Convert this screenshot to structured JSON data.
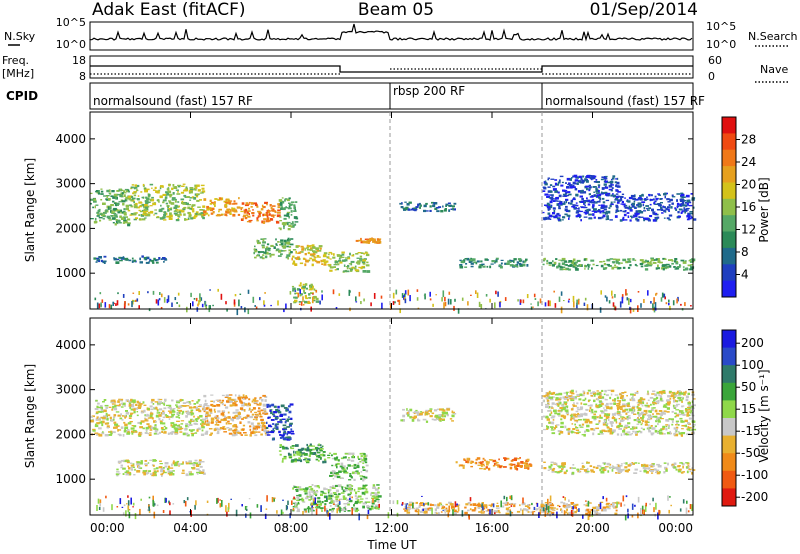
{
  "title": {
    "left": "Adak East (fitACF)",
    "center": "Beam 05",
    "right": "01/Sep/2014"
  },
  "noise_panel": {
    "left_label": "N.Sky",
    "right_label": "N.Search",
    "left_ticks": [
      "10^5",
      "10^0"
    ],
    "right_ticks": [
      "10^5",
      "10^0"
    ]
  },
  "freq_panel": {
    "left_label_1": "Freq.",
    "left_label_2": "[MHz]",
    "left_ticks": [
      "18",
      "8"
    ],
    "right_label": "Nave",
    "right_ticks": [
      "60",
      "0"
    ]
  },
  "cpid": {
    "label": "CPID",
    "segments": [
      {
        "text": "normalsound (fast) 157 RF",
        "start_hour": 0
      },
      {
        "text": "rbsp 200 RF",
        "start_hour": 12
      },
      {
        "text": "normalsound (fast) 157 RF",
        "start_hour": 18
      }
    ]
  },
  "chart_data": [
    {
      "type": "heatmap",
      "name": "power",
      "ylabel": "Slant Range [km]",
      "xlim_hours": [
        0,
        24
      ],
      "ylim": [
        200,
        4600
      ],
      "yticks": [
        "1000",
        "2000",
        "3000",
        "4000"
      ],
      "colorbar": {
        "label": "Power [dB]",
        "ticks": [
          "4",
          "8",
          "12",
          "16",
          "20",
          "24",
          "28"
        ],
        "colors": [
          "#1f1ff0",
          "#1f3fbf",
          "#1f6a8a",
          "#2b8a58",
          "#55a866",
          "#8fbf4a",
          "#d4c21a",
          "#e6a01e",
          "#f07818",
          "#f04a12",
          "#e01010"
        ]
      },
      "regions": [
        {
          "t0": 0.0,
          "t1": 1.5,
          "r0": 2100,
          "r1": 2900,
          "level": 4
        },
        {
          "t0": 1.5,
          "t1": 4.5,
          "r0": 2200,
          "r1": 3000,
          "level": 5
        },
        {
          "t0": 4.5,
          "t1": 6.0,
          "r0": 2300,
          "r1": 2700,
          "level": 7
        },
        {
          "t0": 6.0,
          "t1": 7.5,
          "r0": 2150,
          "r1": 2600,
          "level": 8
        },
        {
          "t0": 7.5,
          "t1": 8.2,
          "r0": 2000,
          "r1": 2700,
          "level": 4
        },
        {
          "t0": 0.0,
          "t1": 3.0,
          "r0": 1250,
          "r1": 1400,
          "level": 2
        },
        {
          "t0": 6.5,
          "t1": 8.0,
          "r0": 1350,
          "r1": 1800,
          "level": 4
        },
        {
          "t0": 8.0,
          "t1": 9.5,
          "r0": 1200,
          "r1": 1650,
          "level": 6
        },
        {
          "t0": 9.5,
          "t1": 11.0,
          "r0": 1050,
          "r1": 1500,
          "level": 5
        },
        {
          "t0": 8.0,
          "t1": 9.0,
          "r0": 350,
          "r1": 800,
          "level": 5
        },
        {
          "t0": 10.5,
          "t1": 11.5,
          "r0": 1700,
          "r1": 1800,
          "level": 8
        },
        {
          "t0": 12.3,
          "t1": 14.5,
          "r0": 2400,
          "r1": 2600,
          "level": 2
        },
        {
          "t0": 14.5,
          "t1": 17.5,
          "r0": 1150,
          "r1": 1350,
          "level": 3
        },
        {
          "t0": 18.0,
          "t1": 21.0,
          "r0": 2200,
          "r1": 3200,
          "level": 1
        },
        {
          "t0": 21.0,
          "t1": 24.0,
          "r0": 2200,
          "r1": 2800,
          "level": 1
        },
        {
          "t0": 18.0,
          "t1": 24.0,
          "r0": 1100,
          "r1": 1350,
          "level": 4
        }
      ]
    },
    {
      "type": "heatmap",
      "name": "velocity",
      "ylabel": "Slant Range [km]",
      "xlim_hours": [
        0,
        24
      ],
      "ylim": [
        200,
        4600
      ],
      "yticks": [
        "1000",
        "2000",
        "3000",
        "4000"
      ],
      "colorbar": {
        "label": "Velocity [m s⁻¹]",
        "ticks": [
          "200",
          "100",
          "50",
          "15",
          "-15",
          "-50",
          "-100",
          "-200"
        ],
        "colors": [
          "#1a1ae0",
          "#2a4ac8",
          "#2f7a6a",
          "#3aa53a",
          "#8fd84a",
          "#c8c8c8",
          "#e8b030",
          "#f08a18",
          "#f05a12",
          "#e01a10"
        ]
      },
      "regions": [
        {
          "t0": 0.0,
          "t1": 4.5,
          "r0": 2000,
          "r1": 2800,
          "level": 5
        },
        {
          "t0": 1.0,
          "t1": 4.5,
          "r0": 1100,
          "r1": 1450,
          "level": 5
        },
        {
          "t0": 4.5,
          "t1": 7.0,
          "r0": 2000,
          "r1": 2900,
          "level": 6
        },
        {
          "t0": 7.0,
          "t1": 8.0,
          "r0": 1900,
          "r1": 2700,
          "level": 1
        },
        {
          "t0": 7.5,
          "t1": 9.5,
          "r0": 1400,
          "r1": 1800,
          "level": 3
        },
        {
          "t0": 9.5,
          "t1": 11.0,
          "r0": 1000,
          "r1": 1600,
          "level": 4
        },
        {
          "t0": 8.0,
          "t1": 11.5,
          "r0": 300,
          "r1": 900,
          "level": 4
        },
        {
          "t0": 12.3,
          "t1": 14.5,
          "r0": 2300,
          "r1": 2600,
          "level": 5
        },
        {
          "t0": 14.5,
          "t1": 17.5,
          "r0": 1250,
          "r1": 1500,
          "level": 7
        },
        {
          "t0": 18.0,
          "t1": 24.0,
          "r0": 2000,
          "r1": 3000,
          "level": 5
        },
        {
          "t0": 18.0,
          "t1": 24.0,
          "r0": 1150,
          "r1": 1400,
          "level": 5
        },
        {
          "t0": 12.5,
          "t1": 21.0,
          "r0": 250,
          "r1": 500,
          "level": 6
        }
      ]
    }
  ],
  "xaxis": {
    "label": "Time UT",
    "ticks": [
      "00:00",
      "04:00",
      "08:00",
      "12:00",
      "16:00",
      "20:00",
      "00:00"
    ]
  }
}
